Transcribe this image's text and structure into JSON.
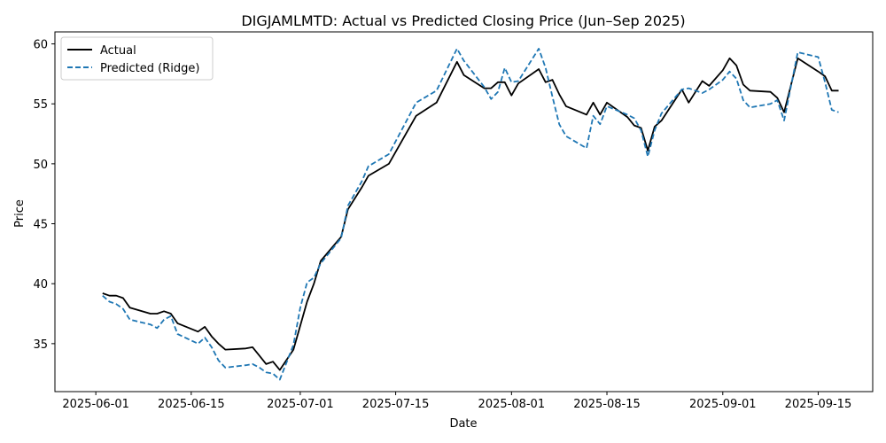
{
  "chart_data": {
    "type": "line",
    "title": "DIGJAMLMTD: Actual vs Predicted Closing Price (Jun–Sep 2025)",
    "xlabel": "Date",
    "ylabel": "Price",
    "xlim": [
      "2025-05-26",
      "2025-09-23"
    ],
    "ylim": [
      31,
      61
    ],
    "x_ticks": [
      "2025-06-01",
      "2025-06-15",
      "2025-07-01",
      "2025-07-15",
      "2025-08-01",
      "2025-08-15",
      "2025-09-01",
      "2025-09-15"
    ],
    "y_ticks": [
      35,
      40,
      45,
      50,
      55,
      60
    ],
    "grid": false,
    "legend_position": "top-left",
    "series": [
      {
        "name": "Actual",
        "color": "#000000",
        "style": "solid",
        "points": [
          [
            "2025-06-02",
            39.2
          ],
          [
            "2025-06-03",
            39.0
          ],
          [
            "2025-06-04",
            39.0
          ],
          [
            "2025-06-05",
            38.8
          ],
          [
            "2025-06-06",
            38.0
          ],
          [
            "2025-06-09",
            37.5
          ],
          [
            "2025-06-10",
            37.5
          ],
          [
            "2025-06-11",
            37.7
          ],
          [
            "2025-06-12",
            37.5
          ],
          [
            "2025-06-13",
            36.7
          ],
          [
            "2025-06-16",
            36.0
          ],
          [
            "2025-06-17",
            36.4
          ],
          [
            "2025-06-18",
            35.6
          ],
          [
            "2025-06-19",
            35.0
          ],
          [
            "2025-06-20",
            34.5
          ],
          [
            "2025-06-23",
            34.6
          ],
          [
            "2025-06-24",
            34.7
          ],
          [
            "2025-06-25",
            34.0
          ],
          [
            "2025-06-26",
            33.3
          ],
          [
            "2025-06-27",
            33.5
          ],
          [
            "2025-06-28",
            32.8
          ],
          [
            "2025-06-30",
            34.5
          ],
          [
            "2025-07-01",
            36.5
          ],
          [
            "2025-07-02",
            38.5
          ],
          [
            "2025-07-03",
            40.0
          ],
          [
            "2025-07-04",
            41.9
          ],
          [
            "2025-07-07",
            43.9
          ],
          [
            "2025-07-08",
            46.2
          ],
          [
            "2025-07-10",
            48.0
          ],
          [
            "2025-07-11",
            49.0
          ],
          [
            "2025-07-14",
            50.0
          ],
          [
            "2025-07-18",
            54.0
          ],
          [
            "2025-07-21",
            55.1
          ],
          [
            "2025-07-24",
            58.5
          ],
          [
            "2025-07-25",
            57.4
          ],
          [
            "2025-07-28",
            56.3
          ],
          [
            "2025-07-29",
            56.3
          ],
          [
            "2025-07-30",
            56.8
          ],
          [
            "2025-07-31",
            56.8
          ],
          [
            "2025-08-01",
            55.7
          ],
          [
            "2025-08-02",
            56.7
          ],
          [
            "2025-08-05",
            57.9
          ],
          [
            "2025-08-06",
            56.8
          ],
          [
            "2025-08-07",
            57.0
          ],
          [
            "2025-08-08",
            55.8
          ],
          [
            "2025-08-09",
            54.8
          ],
          [
            "2025-08-12",
            54.1
          ],
          [
            "2025-08-13",
            55.1
          ],
          [
            "2025-08-14",
            54.1
          ],
          [
            "2025-08-15",
            55.1
          ],
          [
            "2025-08-18",
            53.9
          ],
          [
            "2025-08-19",
            53.2
          ],
          [
            "2025-08-20",
            53.0
          ],
          [
            "2025-08-21",
            51.1
          ],
          [
            "2025-08-22",
            53.1
          ],
          [
            "2025-08-23",
            53.6
          ],
          [
            "2025-08-26",
            56.2
          ],
          [
            "2025-08-27",
            55.1
          ],
          [
            "2025-08-29",
            56.9
          ],
          [
            "2025-08-30",
            56.5
          ],
          [
            "2025-09-01",
            57.8
          ],
          [
            "2025-09-02",
            58.8
          ],
          [
            "2025-09-03",
            58.2
          ],
          [
            "2025-09-04",
            56.6
          ],
          [
            "2025-09-05",
            56.1
          ],
          [
            "2025-09-08",
            56.0
          ],
          [
            "2025-09-09",
            55.5
          ],
          [
            "2025-09-10",
            54.3
          ],
          [
            "2025-09-12",
            58.8
          ],
          [
            "2025-09-15",
            57.7
          ],
          [
            "2025-09-16",
            57.3
          ],
          [
            "2025-09-17",
            56.1
          ],
          [
            "2025-09-18",
            56.1
          ]
        ]
      },
      {
        "name": "Predicted (Ridge)",
        "color": "#1f77b4",
        "style": "dashed",
        "points": [
          [
            "2025-06-02",
            39.0
          ],
          [
            "2025-06-03",
            38.5
          ],
          [
            "2025-06-04",
            38.3
          ],
          [
            "2025-06-05",
            37.9
          ],
          [
            "2025-06-06",
            37.0
          ],
          [
            "2025-06-09",
            36.6
          ],
          [
            "2025-06-10",
            36.3
          ],
          [
            "2025-06-11",
            37.0
          ],
          [
            "2025-06-12",
            37.3
          ],
          [
            "2025-06-13",
            35.8
          ],
          [
            "2025-06-16",
            35.0
          ],
          [
            "2025-06-17",
            35.5
          ],
          [
            "2025-06-18",
            34.7
          ],
          [
            "2025-06-19",
            33.6
          ],
          [
            "2025-06-20",
            33.0
          ],
          [
            "2025-06-23",
            33.2
          ],
          [
            "2025-06-24",
            33.3
          ],
          [
            "2025-06-25",
            33.0
          ],
          [
            "2025-06-26",
            32.6
          ],
          [
            "2025-06-27",
            32.5
          ],
          [
            "2025-06-28",
            32.0
          ],
          [
            "2025-06-30",
            34.9
          ],
          [
            "2025-07-01",
            38.0
          ],
          [
            "2025-07-02",
            40.1
          ],
          [
            "2025-07-03",
            40.5
          ],
          [
            "2025-07-04",
            41.7
          ],
          [
            "2025-07-07",
            43.8
          ],
          [
            "2025-07-08",
            46.5
          ],
          [
            "2025-07-10",
            48.5
          ],
          [
            "2025-07-11",
            49.8
          ],
          [
            "2025-07-14",
            50.8
          ],
          [
            "2025-07-18",
            55.1
          ],
          [
            "2025-07-21",
            56.1
          ],
          [
            "2025-07-24",
            59.6
          ],
          [
            "2025-07-25",
            58.6
          ],
          [
            "2025-07-28",
            56.4
          ],
          [
            "2025-07-29",
            55.4
          ],
          [
            "2025-07-30",
            56.0
          ],
          [
            "2025-07-31",
            58.0
          ],
          [
            "2025-08-01",
            56.8
          ],
          [
            "2025-08-02",
            56.9
          ],
          [
            "2025-08-05",
            59.6
          ],
          [
            "2025-08-06",
            58.0
          ],
          [
            "2025-08-07",
            55.6
          ],
          [
            "2025-08-08",
            53.3
          ],
          [
            "2025-08-09",
            52.3
          ],
          [
            "2025-08-12",
            51.3
          ],
          [
            "2025-08-13",
            54.0
          ],
          [
            "2025-08-14",
            53.3
          ],
          [
            "2025-08-15",
            54.8
          ],
          [
            "2025-08-18",
            54.1
          ],
          [
            "2025-08-19",
            53.8
          ],
          [
            "2025-08-20",
            52.8
          ],
          [
            "2025-08-21",
            50.6
          ],
          [
            "2025-08-22",
            52.8
          ],
          [
            "2025-08-23",
            54.2
          ],
          [
            "2025-08-26",
            56.2
          ],
          [
            "2025-08-27",
            56.3
          ],
          [
            "2025-08-29",
            55.9
          ],
          [
            "2025-08-30",
            56.2
          ],
          [
            "2025-09-01",
            57.0
          ],
          [
            "2025-09-02",
            57.7
          ],
          [
            "2025-09-03",
            57.1
          ],
          [
            "2025-09-04",
            55.3
          ],
          [
            "2025-09-05",
            54.7
          ],
          [
            "2025-09-08",
            55.0
          ],
          [
            "2025-09-09",
            55.3
          ],
          [
            "2025-09-10",
            53.6
          ],
          [
            "2025-09-12",
            59.3
          ],
          [
            "2025-09-15",
            58.9
          ],
          [
            "2025-09-16",
            56.8
          ],
          [
            "2025-09-17",
            54.5
          ],
          [
            "2025-09-18",
            54.3
          ]
        ]
      }
    ]
  }
}
